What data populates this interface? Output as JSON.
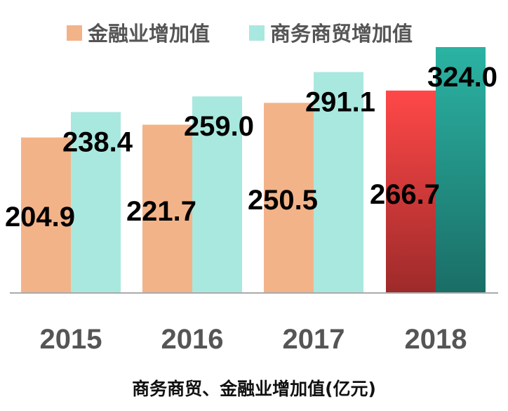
{
  "chart_data": {
    "type": "bar",
    "categories": [
      "2015",
      "2016",
      "2017",
      "2018"
    ],
    "series": [
      {
        "name": "金融业增加值",
        "values": [
          204.9,
          221.7,
          250.5,
          266.7
        ]
      },
      {
        "name": "商务商贸增加值",
        "values": [
          238.4,
          259.0,
          291.1,
          324.0
        ]
      }
    ],
    "value_labels": [
      [
        "204.9",
        "221.7",
        "250.5",
        "266.7"
      ],
      [
        "238.4",
        "259.0",
        "291.1",
        "324.0"
      ]
    ],
    "xlabel": "商务商贸、金融业增加值(亿元)",
    "ylabel": "",
    "ylim": [
      0,
      330
    ],
    "grid": false,
    "legend": "top",
    "colors": {
      "series1": "#f3b388",
      "series2": "#a9e8df",
      "highlight1_top": "#ff4848",
      "highlight1_bottom": "#9e2a2a",
      "highlight2_top": "#2bb3a3",
      "highlight2_bottom": "#1a6e66",
      "axis": "#aaaaaa"
    }
  }
}
